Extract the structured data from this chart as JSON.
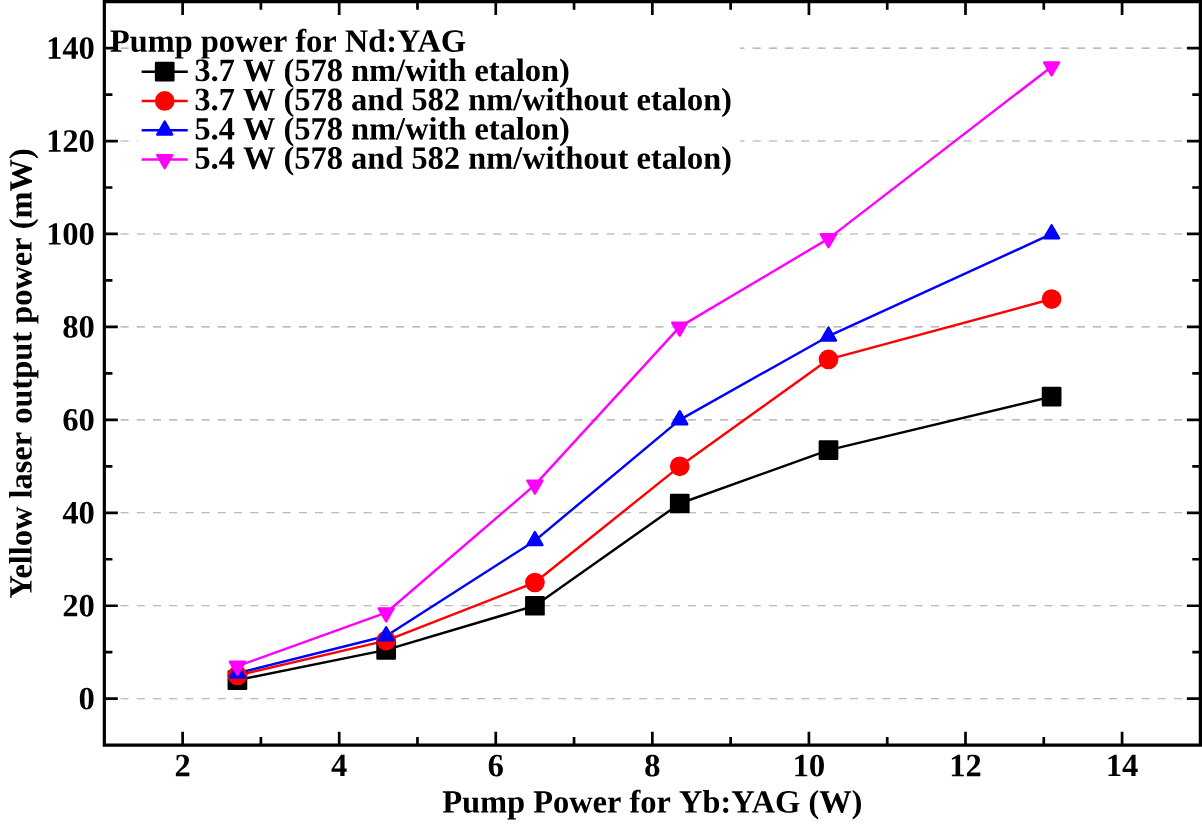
{
  "chart_data": {
    "type": "line",
    "xlabel": "Pump Power for Yb:YAG (W)",
    "ylabel": "Yellow laser output power (mW)",
    "legend_title": "Pump power for Nd:YAG",
    "x": [
      2.7,
      4.6,
      6.5,
      8.35,
      10.25,
      13.1
    ],
    "series": [
      {
        "name": "3.7 W (578 nm/with etalon)",
        "color": "#000000",
        "marker": "square",
        "values": [
          4,
          10.5,
          20,
          42,
          53.5,
          65
        ]
      },
      {
        "name": "3.7 W (578 and 582 nm/without etalon)",
        "color": "#ff0000",
        "marker": "circle",
        "values": [
          5,
          12.5,
          25,
          50,
          73,
          86
        ]
      },
      {
        "name": "5.4 W (578 nm/with etalon)",
        "color": "#0000ff",
        "marker": "triangle",
        "values": [
          5.5,
          13.5,
          34,
          60,
          78,
          100
        ]
      },
      {
        "name": "5.4 W (578 and 582 nm/without etalon)",
        "color": "#ff00ff",
        "marker": "triangle-down",
        "values": [
          7,
          18.5,
          46,
          80,
          99,
          136
        ]
      }
    ],
    "xlim": [
      1,
      15
    ],
    "ylim": [
      -10,
      150
    ],
    "xticks": [
      2,
      4,
      6,
      8,
      10,
      12,
      14
    ],
    "yticks": [
      0,
      20,
      40,
      60,
      80,
      100,
      120,
      140
    ],
    "grid": "y",
    "legend": "top left",
    "line_style": "solid"
  }
}
